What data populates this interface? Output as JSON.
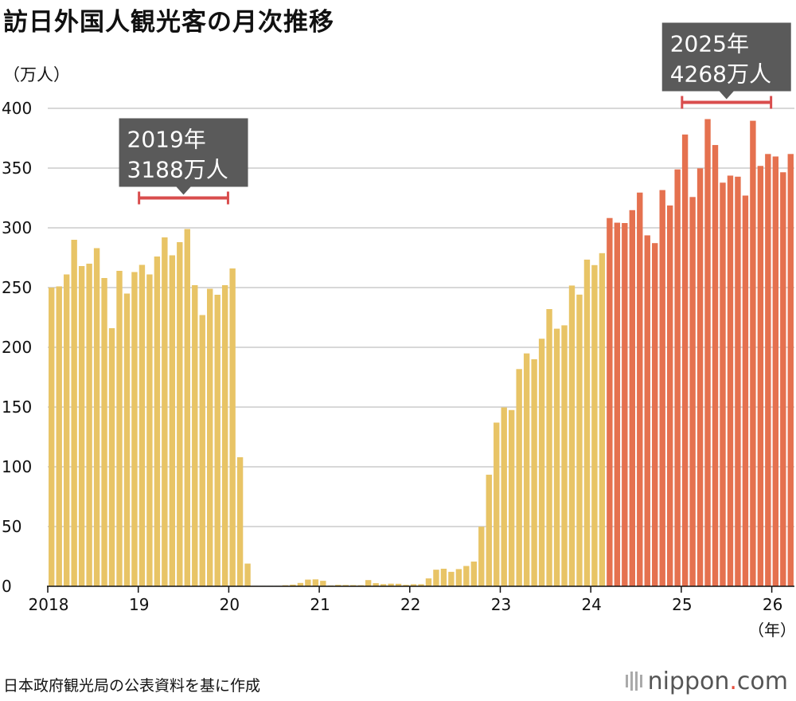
{
  "header": {
    "title": "訪日外国人観光客の月次推移",
    "unit": "（万人）"
  },
  "footer": {
    "source": "日本政府観光局の公表資料を基に作成",
    "logo_main": "nippon",
    "logo_dot": ".",
    "logo_suffix": "com"
  },
  "chart_data": {
    "type": "bar",
    "title": "訪日外国人観光客の月次推移",
    "ylabel": "（万人）",
    "xlabel": "（年）",
    "ylim": [
      0,
      400
    ],
    "yticks": [
      0,
      50,
      100,
      150,
      200,
      250,
      300,
      350,
      400
    ],
    "grid": true,
    "x_start": "2018-01",
    "xticks": [
      {
        "label": "2018",
        "index": 0
      },
      {
        "label": "19",
        "index": 12
      },
      {
        "label": "20",
        "index": 24
      },
      {
        "label": "21",
        "index": 36
      },
      {
        "label": "22",
        "index": 48
      },
      {
        "label": "23",
        "index": 60
      },
      {
        "label": "24",
        "index": 72
      },
      {
        "label": "25",
        "index": 84
      },
      {
        "label": "26",
        "index": 96
      }
    ],
    "color_split_index": 74,
    "colors": {
      "before": "#E8C466",
      "after": "#E5714F",
      "bracket": "#D94D4D",
      "callout_bg": "#5A5A5A",
      "grid": "#CCCCCC"
    },
    "values": [
      250,
      251,
      261,
      290,
      268,
      270,
      283,
      258,
      216,
      264,
      245,
      263,
      269,
      261,
      276,
      292,
      277,
      288,
      299,
      252,
      227,
      249,
      244,
      252,
      266,
      108,
      19,
      0.3,
      0.2,
      0.3,
      0.4,
      0.9,
      1.4,
      2.8,
      5.6,
      5.8,
      4.6,
      0.7,
      1.2,
      1.1,
      1.0,
      0.9,
      5.2,
      2.6,
      1.8,
      2.2,
      2.1,
      1.2,
      1.7,
      1.7,
      6.6,
      13.9,
      14.7,
      12.1,
      14.4,
      17.0,
      20.7,
      49.9,
      93.4,
      137.0,
      149.7,
      147.5,
      181.8,
      194.9,
      190.0,
      207.2,
      232.0,
      215.6,
      218.4,
      251.7,
      244.1,
      273.4,
      268.8,
      278.8,
      308.2,
      304.3,
      304.0,
      314.8,
      329.5,
      293.7,
      287.2,
      331.6,
      318.7,
      348.9,
      378.1,
      325.8,
      349.8,
      391.0,
      369.3,
      337.8,
      343.7,
      342.8,
      327.0,
      389.6,
      351.8,
      361.8,
      359.7,
      346.5,
      361.8
    ]
  },
  "callouts": [
    {
      "text_year": "2019年",
      "text_total": "3188万人",
      "start_index": 12,
      "end_index": 23,
      "anchor_value": 325
    },
    {
      "text_year": "2025年",
      "text_total": "4268万人",
      "start_index": 84,
      "end_index": 95,
      "anchor_value": 405
    }
  ]
}
